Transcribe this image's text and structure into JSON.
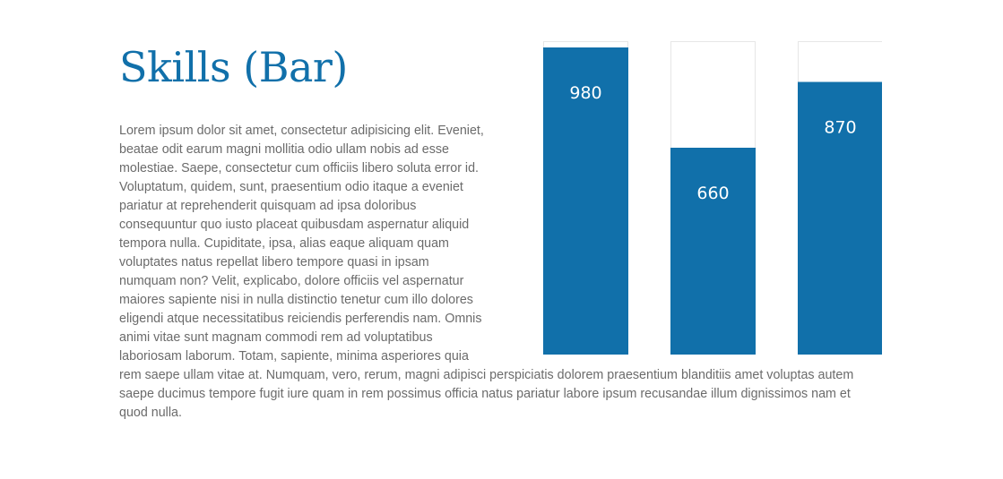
{
  "title": "Skills (Bar)",
  "paragraph": "Lorem ipsum dolor sit amet, consectetur adipisicing elit. Eveniet, beatae odit earum magni mollitia odio ullam nobis ad esse molestiae. Saepe, consectetur cum officiis libero soluta error id. Voluptatum, quidem, sunt, praesentium odio itaque a eveniet pariatur at reprehenderit quisquam ad ipsa doloribus consequuntur quo iusto placeat quibusdam aspernatur aliquid tempora nulla. Cupiditate, ipsa, alias eaque aliquam quam voluptates natus repellat libero tempore quasi in ipsam numquam non? Velit, explicabo, dolore officiis vel aspernatur maiores sapiente nisi in nulla distinctio tenetur cum illo dolores eligendi atque necessitatibus reiciendis perferendis nam. Omnis animi vitae sunt magnam commodi rem ad voluptatibus laboriosam laborum. Totam, sapiente, minima asperiores quia rem saepe ullam vitae at. Numquam, vero, rerum, magni adipisci perspiciatis dolorem praesentium blanditiis amet voluptas autem saepe ducimus tempore fugit iure quam in rem possimus officia natus pariatur labore ipsum recusandae illum dignissimos nam et quod nulla.",
  "colors": {
    "accent": "#1170aa",
    "track_border": "#e6e6e6",
    "text": "#6b6b6b"
  },
  "chart_data": {
    "type": "bar",
    "values": [
      980,
      660,
      870
    ],
    "data_labels": [
      "980",
      "660",
      "870"
    ],
    "ylim": [
      0,
      1000
    ],
    "grid": false,
    "legend": "none"
  }
}
